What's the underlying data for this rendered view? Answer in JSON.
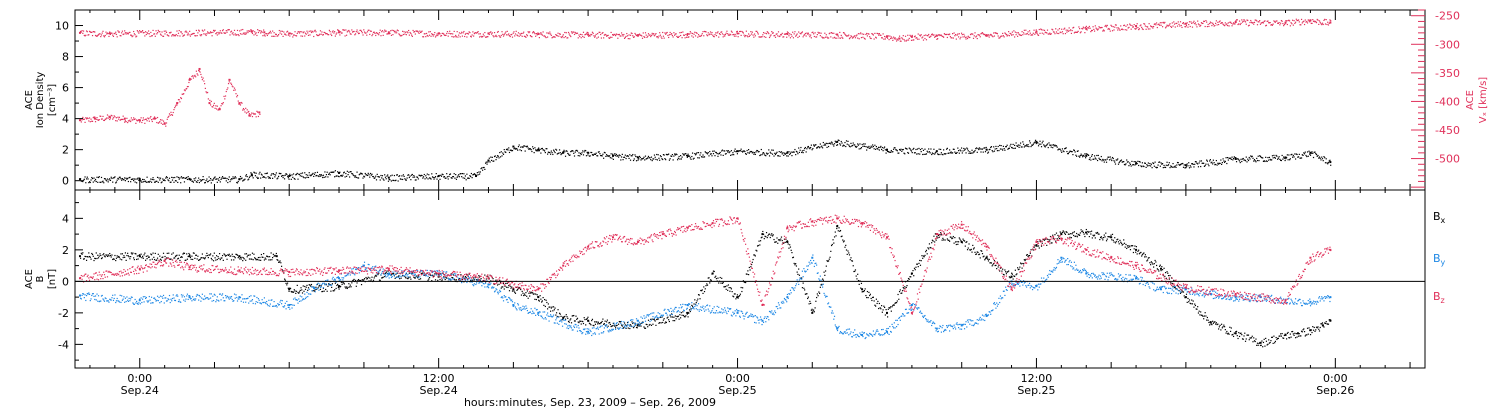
{
  "colors": {
    "black": "#000000",
    "magenta": "#e0305a",
    "blue": "#1e88e5"
  },
  "time_axis": {
    "title": "hours:minutes, Sep. 23, 2009 – Sep. 26, 2009",
    "ticks": [
      {
        "t": 0,
        "hm": "0:00",
        "day": "Sep.24"
      },
      {
        "t": 12,
        "hm": "12:00",
        "day": "Sep.24"
      },
      {
        "t": 24,
        "hm": "0:00",
        "day": "Sep.25"
      },
      {
        "t": 36,
        "hm": "12:00",
        "day": "Sep.25"
      },
      {
        "t": 48,
        "hm": "0:00",
        "day": "Sep.26"
      }
    ]
  },
  "chart_data": [
    {
      "panel": "top",
      "type": "scatter",
      "xlim_hours": [
        -2.6,
        51.6
      ],
      "left_axis": {
        "label_lines": [
          "ACE",
          "Ion Density",
          "[cm⁻³]"
        ],
        "range": [
          -0.6,
          11.0
        ],
        "ticks": [
          0,
          2,
          4,
          6,
          8,
          10
        ]
      },
      "right_axis": {
        "label_lines": [
          "ACE",
          "Vₓ [km/s]"
        ],
        "range": [
          -555,
          -240
        ],
        "ticks": [
          -250,
          -300,
          -350,
          -400,
          -450,
          -500
        ]
      },
      "series": [
        {
          "axis": "left",
          "color": "magenta",
          "x": [
            -2.4,
            -1.8,
            -1.2,
            -0.6,
            0,
            0.6,
            1,
            1.5,
            2,
            2.4,
            2.8,
            3.2,
            3.6,
            4,
            4.4,
            4.8
          ],
          "y": [
            3.9,
            4.0,
            4.1,
            4.0,
            3.9,
            4.0,
            3.7,
            5.0,
            6.5,
            7.2,
            5.0,
            4.6,
            6.5,
            5.0,
            4.2,
            4.4
          ]
        },
        {
          "axis": "right",
          "color": "magenta",
          "x": [
            -2.4,
            -1.2,
            4.5,
            5.0,
            6.0,
            8,
            10,
            12,
            14,
            16,
            18,
            20,
            22,
            24,
            26,
            28,
            30,
            30.5,
            31,
            32,
            34,
            36,
            38,
            40,
            42,
            44,
            46,
            47,
            47.8
          ],
          "y": [
            -280,
            -281,
            -278,
            -279,
            -281,
            -279,
            -279,
            -281,
            -281,
            -282,
            -283,
            -284,
            -282,
            -281,
            -282,
            -283,
            -286,
            -290,
            -287,
            -285,
            -284,
            -278,
            -273,
            -268,
            -264,
            -261,
            -262,
            -258,
            -262
          ]
        },
        {
          "axis": "left",
          "color": "black",
          "x": [
            -2.4,
            0,
            2,
            4,
            4.5,
            6,
            8,
            10,
            12,
            13.5,
            14,
            15,
            16,
            17,
            18,
            19,
            20,
            22,
            24,
            26,
            28,
            30,
            32,
            34,
            36,
            38,
            40,
            42,
            44,
            46,
            47,
            47.8
          ],
          "y": [
            0.1,
            0.1,
            0.1,
            0.1,
            0.4,
            0.3,
            0.5,
            0.2,
            0.3,
            0.3,
            1.3,
            2.2,
            2.0,
            1.8,
            1.8,
            1.6,
            1.5,
            1.6,
            1.9,
            1.8,
            2.5,
            2.0,
            1.9,
            2.0,
            2.5,
            1.6,
            1.1,
            1.0,
            1.4,
            1.5,
            1.8,
            1.2
          ]
        }
      ]
    },
    {
      "panel": "bottom",
      "type": "scatter",
      "xlim_hours": [
        -2.6,
        51.6
      ],
      "left_axis": {
        "label_lines": [
          "ACE",
          "B",
          "[nT]"
        ],
        "range": [
          -5.5,
          5.8
        ],
        "ticks": [
          -4,
          -2,
          0,
          2,
          4
        ]
      },
      "zero_line": 0,
      "series": [
        {
          "name": "Bx",
          "color": "black",
          "x": [
            -2.4,
            0,
            2,
            4,
            5.5,
            6,
            8,
            10,
            12,
            14,
            15,
            16,
            17,
            18,
            20,
            22,
            23,
            24,
            25,
            26,
            27,
            28,
            29,
            30,
            31,
            32,
            33,
            34,
            35,
            36,
            37,
            38,
            39,
            40,
            41,
            42,
            43,
            44,
            45,
            46,
            46.5,
            47,
            47.5,
            47.8
          ],
          "y": [
            1.6,
            1.6,
            1.6,
            1.6,
            1.6,
            -0.5,
            -0.3,
            0.5,
            0.3,
            0.2,
            -0.5,
            -1.0,
            -2.3,
            -2.5,
            -2.8,
            -2.0,
            0.5,
            -1.0,
            3.0,
            2.5,
            -2.0,
            3.5,
            -0.5,
            -2.0,
            0.5,
            3.0,
            2.5,
            1.5,
            0.3,
            2.3,
            3.0,
            3.1,
            2.8,
            2.0,
            0.8,
            -1.0,
            -2.6,
            -3.3,
            -3.9,
            -3.4,
            -3.3,
            -3.1,
            -2.8,
            -2.5
          ]
        },
        {
          "name": "By",
          "color": "blue",
          "x": [
            -2.4,
            0,
            2,
            4,
            6,
            7,
            8,
            9,
            10,
            12,
            14,
            15,
            16,
            18,
            20,
            22,
            24,
            25,
            26,
            27,
            28,
            29,
            30,
            31,
            32,
            33,
            34,
            35,
            36,
            37,
            38,
            40,
            41,
            42,
            43,
            44,
            45,
            46,
            47,
            47.8
          ],
          "y": [
            -0.9,
            -1.2,
            -1.0,
            -1.0,
            -1.5,
            -0.4,
            0.2,
            1.0,
            0.5,
            0.5,
            -0.2,
            -1.5,
            -2.0,
            -3.2,
            -2.5,
            -1.5,
            -2.0,
            -2.5,
            -1.0,
            1.5,
            -3.0,
            -3.4,
            -3.2,
            -1.5,
            -3.0,
            -2.8,
            -2.2,
            0,
            -0.3,
            1.5,
            0.5,
            0.2,
            -0.5,
            -0.5,
            -0.8,
            -1.0,
            -1.0,
            -1.2,
            -1.3,
            -1.0
          ]
        },
        {
          "name": "Bz",
          "color": "magenta",
          "x": [
            -2.4,
            0,
            1,
            2,
            4,
            6,
            8,
            10,
            12,
            14,
            16,
            17,
            18,
            19,
            20,
            21,
            22,
            23,
            24,
            25,
            26,
            27,
            28,
            29,
            30,
            31,
            32,
            33,
            34,
            35,
            36,
            37,
            38,
            39,
            40,
            42,
            44,
            46,
            47,
            47.8
          ],
          "y": [
            0.2,
            0.8,
            1.3,
            0.9,
            0.7,
            0.6,
            0.7,
            0.8,
            0.5,
            0.2,
            -0.5,
            1.0,
            2.2,
            2.8,
            2.5,
            3.0,
            3.4,
            3.7,
            4.0,
            -1.5,
            3.4,
            3.8,
            4.0,
            3.7,
            2.8,
            -2.0,
            3.0,
            3.6,
            2.2,
            -0.5,
            2.5,
            2.7,
            2.0,
            1.5,
            1.0,
            -0.4,
            -0.8,
            -1.2,
            1.5,
            2.0
          ]
        }
      ],
      "legend": [
        {
          "label": "B",
          "sub": "x",
          "color": "black"
        },
        {
          "label": "B",
          "sub": "y",
          "color": "blue"
        },
        {
          "label": "B",
          "sub": "z",
          "color": "magenta"
        }
      ]
    }
  ]
}
